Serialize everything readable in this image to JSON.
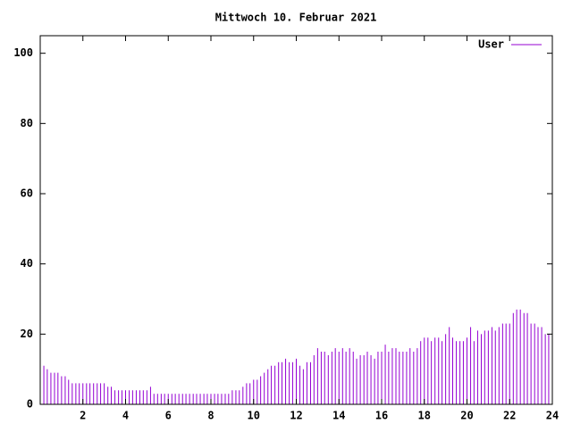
{
  "chart_data": {
    "type": "impulses",
    "title": "Mittwoch 10. Februar 2021",
    "xlim": [
      0,
      24
    ],
    "xticks": [
      2,
      4,
      6,
      8,
      10,
      12,
      14,
      16,
      18,
      20,
      22,
      24
    ],
    "ylim": [
      0,
      105
    ],
    "yticks": [
      0,
      20,
      40,
      60,
      80,
      100
    ],
    "legend": "top-right",
    "x": [
      0,
      0.17,
      0.33,
      0.5,
      0.67,
      0.83,
      1,
      1.17,
      1.33,
      1.5,
      1.67,
      1.83,
      2,
      2.17,
      2.33,
      2.5,
      2.67,
      2.83,
      3,
      3.17,
      3.33,
      3.5,
      3.67,
      3.83,
      4,
      4.17,
      4.33,
      4.5,
      4.67,
      4.83,
      5,
      5.17,
      5.33,
      5.5,
      5.67,
      5.83,
      6,
      6.17,
      6.33,
      6.5,
      6.67,
      6.83,
      7,
      7.17,
      7.33,
      7.5,
      7.67,
      7.83,
      8,
      8.17,
      8.33,
      8.5,
      8.67,
      8.83,
      9,
      9.17,
      9.33,
      9.5,
      9.67,
      9.83,
      10,
      10.17,
      10.33,
      10.5,
      10.67,
      10.83,
      11,
      11.17,
      11.33,
      11.5,
      11.67,
      11.83,
      12,
      12.17,
      12.33,
      12.5,
      12.67,
      12.83,
      13,
      13.17,
      13.33,
      13.5,
      13.67,
      13.83,
      14,
      14.17,
      14.33,
      14.5,
      14.67,
      14.83,
      15,
      15.17,
      15.33,
      15.5,
      15.67,
      15.83,
      16,
      16.17,
      16.33,
      16.5,
      16.67,
      16.83,
      17,
      17.17,
      17.33,
      17.5,
      17.67,
      17.83,
      18,
      18.17,
      18.33,
      18.5,
      18.67,
      18.83,
      19,
      19.17,
      19.33,
      19.5,
      19.67,
      19.83,
      20,
      20.17,
      20.33,
      20.5,
      20.67,
      20.83,
      21,
      21.17,
      21.33,
      21.5,
      21.67,
      21.83,
      22,
      22.17,
      22.33,
      22.5,
      22.67,
      22.83,
      23,
      23.17,
      23.33,
      23.5,
      23.67,
      23.83
    ],
    "series": [
      {
        "name": "User",
        "color": "#9400d3",
        "values": [
          11,
          11,
          10,
          9,
          9,
          9,
          8,
          8,
          7,
          6,
          6,
          6,
          6,
          6,
          6,
          6,
          6,
          6,
          6,
          5,
          5,
          4,
          4,
          4,
          4,
          4,
          4,
          4,
          4,
          4,
          4,
          5,
          3,
          3,
          3,
          3,
          3,
          3,
          3,
          3,
          3,
          3,
          3,
          3,
          3,
          3,
          3,
          3,
          3,
          3,
          3,
          3,
          3,
          3,
          4,
          4,
          4,
          5,
          6,
          6,
          7,
          7,
          8,
          9,
          10,
          11,
          11,
          12,
          12,
          13,
          12,
          12,
          13,
          11,
          10,
          12,
          12,
          14,
          16,
          15,
          15,
          14,
          15,
          16,
          15,
          16,
          15,
          16,
          15,
          13,
          14,
          14,
          15,
          14,
          13,
          15,
          15,
          17,
          15,
          16,
          16,
          15,
          15,
          15,
          16,
          15,
          16,
          18,
          19,
          19,
          18,
          19,
          19,
          18,
          20,
          22,
          19,
          18,
          18,
          18,
          19,
          22,
          18,
          21,
          20,
          21,
          21,
          22,
          21,
          22,
          23,
          23,
          23,
          26,
          27,
          27,
          26,
          26,
          23,
          23,
          22,
          22,
          20,
          20
        ]
      }
    ]
  }
}
